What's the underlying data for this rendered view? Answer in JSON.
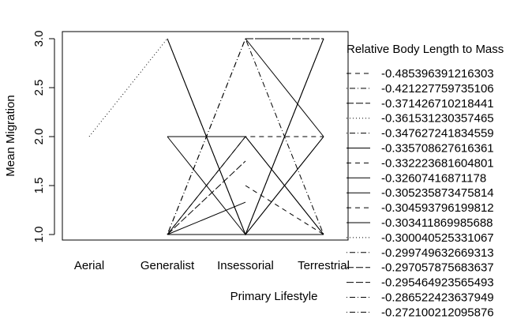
{
  "chart_data": {
    "type": "line",
    "xlabel": "Primary Lifestyle",
    "ylabel": "Mean Migration",
    "categories": [
      "Aerial",
      "Generalist",
      "Insessorial",
      "Terrestrial"
    ],
    "ylim": [
      1.0,
      3.0
    ],
    "yticks": [
      "1.0",
      "1.5",
      "2.0",
      "2.5",
      "3.0"
    ],
    "legend": {
      "title": "Relative Body Length to Mass",
      "placement": "right (clipped)",
      "entries": [
        {
          "label": "-0.485396391216303",
          "dash": "6,5"
        },
        {
          "label": "-0.421227759735106",
          "dash": "1,3,7,3"
        },
        {
          "label": "-0.371426710218441",
          "dash": "9,3"
        },
        {
          "label": "-0.361531230357465",
          "dash": "1,3"
        },
        {
          "label": "-0.347627241834559",
          "dash": "1,3,7,3"
        },
        {
          "label": "-0.335708627616361",
          "dash": ""
        },
        {
          "label": "-0.332223681604801",
          "dash": "6,5"
        },
        {
          "label": "-0.32607416871178",
          "dash": ""
        },
        {
          "label": "-0.305235873475814",
          "dash": ""
        },
        {
          "label": "-0.304593796199812",
          "dash": "6,5"
        },
        {
          "label": "-0.303411869985688",
          "dash": ""
        },
        {
          "label": "-0.300040525331067",
          "dash": "1,3"
        },
        {
          "label": "-0.299749632669313",
          "dash": "1,3,7,3"
        },
        {
          "label": "-0.297057875683637",
          "dash": "9,3"
        },
        {
          "label": "-0.295464923565493",
          "dash": "9,3"
        },
        {
          "label": "-0.286522423637949",
          "dash": "1,3,7,3"
        },
        {
          "label": "-0.272100212095876",
          "dash": "1,3,7,3"
        }
      ]
    },
    "series": [
      {
        "dash": "1,3",
        "points": [
          [
            0,
            2.0
          ],
          [
            1,
            3.0
          ]
        ]
      },
      {
        "dash": "",
        "points": [
          [
            1,
            3.0
          ],
          [
            2,
            1.0
          ],
          [
            3,
            3.0
          ]
        ]
      },
      {
        "dash": "",
        "points": [
          [
            1,
            3.0
          ],
          [
            2,
            1.0
          ],
          [
            3,
            2.0
          ]
        ]
      },
      {
        "dash": "1,3,7,3",
        "points": [
          [
            1,
            1.0
          ],
          [
            2,
            3.0
          ],
          [
            3,
            3.0
          ]
        ]
      },
      {
        "dash": "1,3,7,3",
        "points": [
          [
            1,
            1.0
          ],
          [
            2,
            3.0
          ],
          [
            3,
            1.0
          ]
        ]
      },
      {
        "dash": "",
        "points": [
          [
            1,
            2.0
          ],
          [
            2,
            2.0
          ],
          [
            3,
            1.0
          ]
        ]
      },
      {
        "dash": "",
        "points": [
          [
            1,
            2.0
          ],
          [
            2,
            1.0
          ],
          [
            3,
            2.0
          ]
        ]
      },
      {
        "dash": "",
        "points": [
          [
            1,
            1.0
          ],
          [
            2,
            2.0
          ],
          [
            3,
            1.0
          ]
        ]
      },
      {
        "dash": "6,5",
        "points": [
          [
            1,
            1.0
          ],
          [
            2,
            2.0
          ],
          [
            3,
            2.0
          ]
        ]
      },
      {
        "dash": "",
        "points": [
          [
            1,
            1.0
          ],
          [
            2,
            1.0
          ],
          [
            3,
            1.0
          ]
        ]
      },
      {
        "dash": "9,3",
        "points": [
          [
            1,
            1.0
          ],
          [
            2,
            1.75
          ]
        ]
      },
      {
        "dash": "",
        "points": [
          [
            1,
            1.0
          ],
          [
            2,
            1.33
          ]
        ]
      },
      {
        "dash": "6,5",
        "points": [
          [
            2,
            1.5
          ],
          [
            3,
            1.0
          ]
        ]
      },
      {
        "dash": "",
        "points": [
          [
            2,
            3.0
          ],
          [
            3,
            2.0
          ]
        ]
      },
      {
        "dash": "9,3",
        "points": [
          [
            2,
            3.0
          ],
          [
            3,
            3.0
          ]
        ]
      },
      {
        "dash": "",
        "points": [
          [
            2,
            1.0
          ],
          [
            3,
            3.0
          ]
        ]
      }
    ]
  }
}
